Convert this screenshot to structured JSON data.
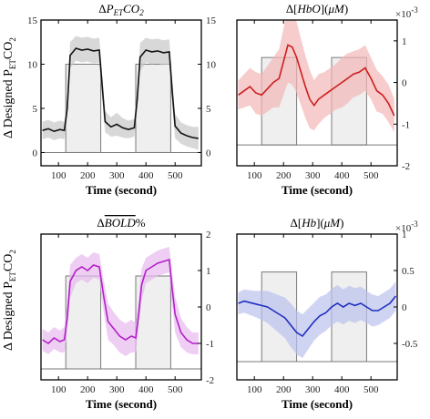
{
  "figure": {
    "ylabel_main": "Δ Designed P",
    "ylabel_sub": "ET",
    "ylabel_tail": "CO",
    "ylabel_sub2": "2"
  },
  "chart_data": [
    {
      "type": "line",
      "title": "ΔP_ET CO_2",
      "title_parts": [
        "Δ",
        "P",
        "ET",
        "CO",
        "2"
      ],
      "xlabel": "Time (second)",
      "xlim": [
        40,
        590
      ],
      "xticks": [
        100,
        200,
        300,
        400,
        500
      ],
      "ylim": [
        -1.5,
        15
      ],
      "yticks_left": [
        0,
        5,
        10,
        15
      ],
      "yticks_right": [
        0,
        5,
        10,
        15
      ],
      "exponent": "",
      "designed_box": {
        "baseline": 0,
        "level": 10,
        "blocks": [
          [
            125,
            245
          ],
          [
            365,
            485
          ]
        ]
      },
      "series_color": "#111111",
      "band_color": "#c8c8c8",
      "x": [
        45,
        65,
        85,
        105,
        120,
        130,
        140,
        160,
        180,
        200,
        220,
        240,
        250,
        260,
        280,
        300,
        320,
        340,
        360,
        370,
        380,
        400,
        420,
        440,
        460,
        480,
        490,
        500,
        520,
        540,
        560,
        580
      ],
      "values": [
        2.5,
        2.7,
        2.4,
        2.6,
        2.5,
        5.0,
        11.0,
        11.8,
        11.6,
        11.7,
        11.5,
        11.6,
        7.5,
        3.5,
        2.9,
        3.2,
        2.8,
        2.6,
        2.8,
        6.0,
        10.8,
        11.6,
        11.4,
        11.5,
        11.3,
        11.4,
        7.0,
        3.0,
        2.2,
        1.9,
        1.7,
        1.6
      ],
      "band_halfwidth": [
        1.0,
        1.0,
        1.0,
        1.0,
        1.0,
        1.2,
        1.5,
        1.4,
        1.4,
        1.4,
        1.4,
        1.4,
        1.5,
        1.2,
        1.1,
        1.3,
        1.1,
        1.0,
        1.0,
        1.2,
        1.6,
        1.4,
        1.4,
        1.4,
        1.4,
        1.4,
        1.5,
        1.4,
        1.2,
        1.2,
        1.2,
        1.3
      ]
    },
    {
      "type": "line",
      "title": "Δ[HbO](μM)",
      "title_parts": [
        "Δ[",
        "HbO",
        "](",
        "μM",
        ")"
      ],
      "xlabel": "Time (second)",
      "xlim": [
        40,
        590
      ],
      "xticks": [
        100,
        200,
        300,
        400,
        500
      ],
      "ylim": [
        -2,
        1.5
      ],
      "yticks_left": [],
      "yticks_right": [
        -2,
        -1,
        0,
        1
      ],
      "exponent": "×10",
      "exponent_power": "-3",
      "designed_box": {
        "baseline": -1.5,
        "level": 0.6,
        "blocks": [
          [
            125,
            245
          ],
          [
            365,
            485
          ]
        ]
      },
      "series_color": "#cc1f1f",
      "band_color": "#f4b6b6",
      "x": [
        45,
        65,
        85,
        105,
        125,
        145,
        165,
        185,
        200,
        215,
        230,
        245,
        260,
        275,
        290,
        305,
        320,
        340,
        360,
        380,
        400,
        420,
        440,
        460,
        480,
        500,
        520,
        540,
        560,
        580
      ],
      "values": [
        -0.3,
        -0.2,
        -0.1,
        -0.25,
        -0.3,
        -0.15,
        0.0,
        0.1,
        0.5,
        0.9,
        0.85,
        0.6,
        0.25,
        -0.1,
        -0.4,
        -0.55,
        -0.4,
        -0.3,
        -0.2,
        -0.1,
        0.0,
        0.1,
        0.2,
        0.25,
        0.35,
        0.1,
        -0.2,
        -0.3,
        -0.5,
        -0.8
      ],
      "band_halfwidth": [
        0.35,
        0.4,
        0.45,
        0.5,
        0.5,
        0.55,
        0.6,
        0.7,
        0.8,
        0.9,
        0.9,
        0.85,
        0.8,
        0.75,
        0.7,
        0.6,
        0.6,
        0.55,
        0.55,
        0.55,
        0.6,
        0.6,
        0.55,
        0.55,
        0.55,
        0.5,
        0.5,
        0.45,
        0.45,
        0.4
      ]
    },
    {
      "type": "line",
      "title": "ΔBOLD%",
      "title_parts": [
        "Δ",
        "BOLD",
        "%"
      ],
      "xlabel": "Time (second)",
      "xlim": [
        40,
        590
      ],
      "xticks": [
        100,
        200,
        300,
        400,
        500
      ],
      "ylim": [
        -2,
        2
      ],
      "yticks_left": [],
      "yticks_right": [
        -2,
        -1,
        0,
        1,
        2
      ],
      "exponent": "",
      "designed_box": {
        "baseline": -1.7,
        "level": 0.85,
        "blocks": [
          [
            125,
            245
          ],
          [
            365,
            485
          ]
        ]
      },
      "series_color": "#b31fc9",
      "band_color": "#e8b9ef",
      "x": [
        45,
        65,
        85,
        105,
        120,
        130,
        140,
        160,
        180,
        200,
        220,
        240,
        255,
        270,
        290,
        310,
        330,
        350,
        365,
        375,
        385,
        400,
        420,
        440,
        460,
        480,
        490,
        500,
        520,
        540,
        560,
        580
      ],
      "values": [
        -0.9,
        -1.0,
        -0.85,
        -0.95,
        -0.9,
        -0.3,
        0.7,
        1.0,
        1.1,
        1.0,
        1.15,
        1.1,
        0.3,
        -0.4,
        -0.6,
        -0.8,
        -0.9,
        -0.8,
        -0.85,
        -0.2,
        0.6,
        1.0,
        1.1,
        1.2,
        1.25,
        1.3,
        0.5,
        -0.2,
        -0.7,
        -0.9,
        -1.0,
        -1.0
      ],
      "band_halfwidth": [
        0.3,
        0.3,
        0.3,
        0.3,
        0.35,
        0.4,
        0.45,
        0.35,
        0.35,
        0.35,
        0.35,
        0.35,
        0.45,
        0.5,
        0.45,
        0.45,
        0.45,
        0.45,
        0.4,
        0.4,
        0.45,
        0.35,
        0.35,
        0.35,
        0.35,
        0.35,
        0.45,
        0.5,
        0.4,
        0.35,
        0.3,
        0.3
      ]
    },
    {
      "type": "line",
      "title": "Δ[Hb](μM)",
      "title_parts": [
        "Δ[",
        "Hb",
        "](",
        "μM",
        ")"
      ],
      "xlabel": "Time (second)",
      "xlim": [
        40,
        590
      ],
      "xticks": [
        100,
        200,
        300,
        400,
        500
      ],
      "ylim": [
        -1,
        1
      ],
      "yticks_left": [],
      "yticks_right": [
        -0.5,
        0,
        0.5,
        1
      ],
      "exponent": "×10",
      "exponent_power": "-3",
      "designed_box": {
        "baseline": -0.75,
        "level": 0.48,
        "blocks": [
          [
            125,
            245
          ],
          [
            365,
            485
          ]
        ]
      },
      "series_color": "#1f2fc0",
      "band_color": "#bcc2ee",
      "x": [
        45,
        65,
        85,
        105,
        125,
        145,
        165,
        185,
        205,
        225,
        245,
        265,
        285,
        305,
        325,
        345,
        365,
        385,
        405,
        425,
        445,
        465,
        485,
        505,
        525,
        545,
        565,
        585
      ],
      "values": [
        0.05,
        0.08,
        0.06,
        0.04,
        0.02,
        0.0,
        -0.05,
        -0.1,
        -0.15,
        -0.25,
        -0.35,
        -0.4,
        -0.3,
        -0.2,
        -0.12,
        -0.08,
        0.0,
        0.05,
        0.0,
        0.05,
        0.02,
        0.05,
        0.0,
        -0.05,
        -0.05,
        0.0,
        0.05,
        0.15
      ],
      "band_halfwidth": [
        0.15,
        0.16,
        0.17,
        0.18,
        0.2,
        0.22,
        0.24,
        0.26,
        0.28,
        0.3,
        0.3,
        0.3,
        0.28,
        0.26,
        0.26,
        0.25,
        0.25,
        0.25,
        0.24,
        0.24,
        0.24,
        0.23,
        0.22,
        0.22,
        0.2,
        0.2,
        0.2,
        0.2
      ]
    }
  ]
}
